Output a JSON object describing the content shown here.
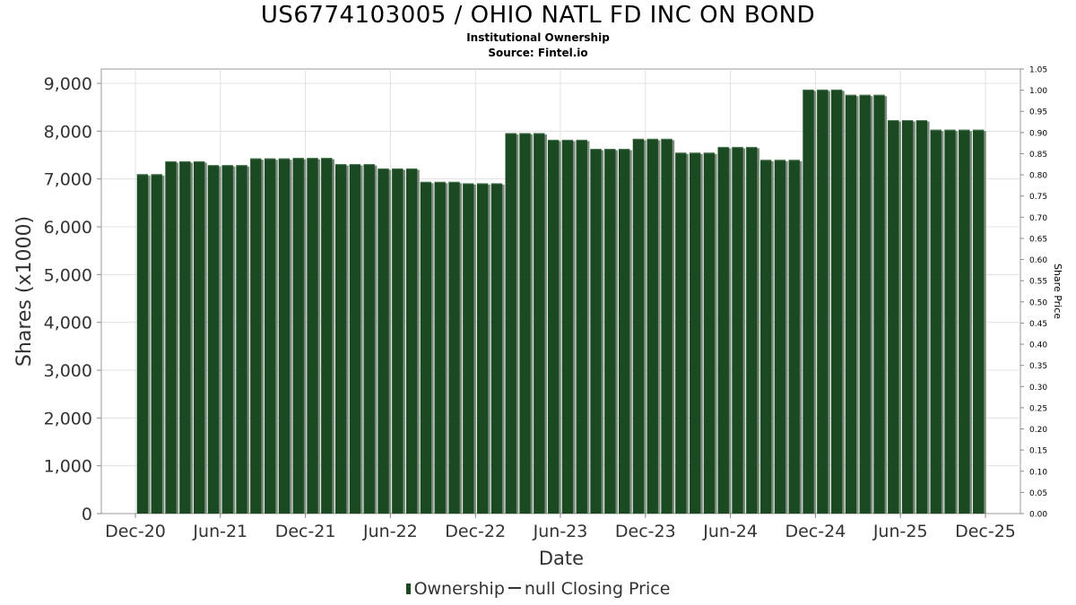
{
  "chart_data": {
    "type": "bar",
    "title": "US6774103005 / OHIO NATL FD INC ON BOND",
    "subtitle": "Institutional Ownership",
    "source": "Source: Fintel.io",
    "xlabel": "Date",
    "ylabel": "Shares (x1000)",
    "y2label": "Share Price",
    "ylim": [
      0,
      9300
    ],
    "y2lim": [
      0,
      1.05
    ],
    "yticks": [
      0,
      1000,
      2000,
      3000,
      4000,
      5000,
      6000,
      7000,
      8000,
      9000
    ],
    "ytick_labels": [
      "0",
      "1,000",
      "2,000",
      "3,000",
      "4,000",
      "5,000",
      "6,000",
      "7,000",
      "8,000",
      "9,000"
    ],
    "y2ticks": [
      "0.00",
      "0.05",
      "0.10",
      "0.15",
      "0.20",
      "0.25",
      "0.30",
      "0.35",
      "0.40",
      "0.45",
      "0.50",
      "0.55",
      "0.60",
      "0.65",
      "0.70",
      "0.75",
      "0.80",
      "0.85",
      "0.90",
      "0.95",
      "1.00",
      "1.05"
    ],
    "xticks": [
      "Dec-20",
      "Jun-21",
      "Dec-21",
      "Jun-22",
      "Dec-22",
      "Jun-23",
      "Dec-23",
      "Jun-24",
      "Dec-24",
      "Jun-25",
      "Dec-25"
    ],
    "grid": true,
    "legend_position": "bottom",
    "colors": {
      "bar": "#1b4a22",
      "bar_shadow": "#7a8a7c"
    },
    "series": [
      {
        "name": "Ownership",
        "values": [
          7100,
          7100,
          7370,
          7370,
          7370,
          7290,
          7290,
          7290,
          7430,
          7430,
          7430,
          7440,
          7440,
          7440,
          7310,
          7310,
          7310,
          7220,
          7220,
          7220,
          6940,
          6940,
          6940,
          6910,
          6910,
          6910,
          7960,
          7960,
          7960,
          7820,
          7820,
          7820,
          7630,
          7630,
          7630,
          7840,
          7840,
          7840,
          7550,
          7550,
          7550,
          7670,
          7670,
          7670,
          7400,
          7400,
          7400,
          8870,
          8870,
          8870,
          8760,
          8760,
          8760,
          8230,
          8230,
          8230,
          8030,
          8030,
          8030,
          8030
        ]
      }
    ],
    "legend": [
      "Ownership",
      "null Closing Price"
    ]
  }
}
